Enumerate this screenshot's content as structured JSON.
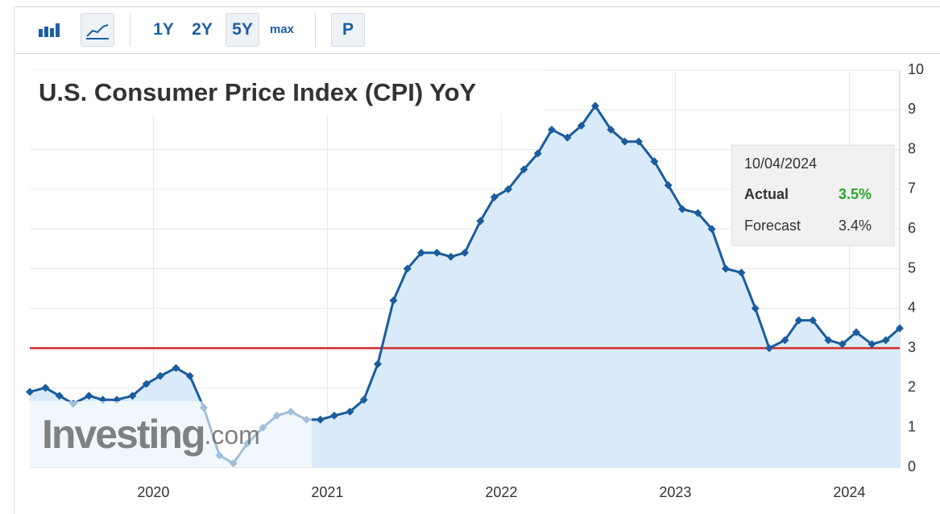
{
  "toolbar": {
    "buttons": [
      "1Y",
      "2Y",
      "5Y",
      "max",
      "P"
    ]
  },
  "chart_data": {
    "type": "area",
    "title": "U.S. Consumer Price Index (CPI) YoY",
    "x": [
      2019.29,
      2019.38,
      2019.46,
      2019.54,
      2019.63,
      2019.71,
      2019.79,
      2019.88,
      2019.96,
      2020.04,
      2020.13,
      2020.21,
      2020.29,
      2020.38,
      2020.46,
      2020.54,
      2020.63,
      2020.71,
      2020.79,
      2020.88,
      2020.96,
      2021.04,
      2021.13,
      2021.21,
      2021.29,
      2021.38,
      2021.46,
      2021.54,
      2021.63,
      2021.71,
      2021.79,
      2021.88,
      2021.96,
      2022.04,
      2022.13,
      2022.21,
      2022.29,
      2022.38,
      2022.46,
      2022.54,
      2022.63,
      2022.71,
      2022.79,
      2022.88,
      2022.96,
      2023.04,
      2023.13,
      2023.21,
      2023.29,
      2023.38,
      2023.46,
      2023.54,
      2023.63,
      2023.71,
      2023.79,
      2023.88,
      2023.96,
      2024.04,
      2024.13,
      2024.21,
      2024.29
    ],
    "values": [
      1.9,
      2.0,
      1.8,
      1.6,
      1.8,
      1.7,
      1.7,
      1.8,
      2.1,
      2.3,
      2.5,
      2.3,
      1.5,
      0.3,
      0.1,
      0.6,
      1.0,
      1.3,
      1.4,
      1.2,
      1.2,
      1.3,
      1.4,
      1.7,
      2.6,
      4.2,
      5.0,
      5.4,
      5.4,
      5.3,
      5.4,
      6.2,
      6.8,
      7.0,
      7.5,
      7.9,
      8.5,
      8.3,
      8.6,
      9.1,
      8.5,
      8.2,
      8.2,
      7.7,
      7.1,
      6.5,
      6.4,
      6.0,
      5.0,
      4.9,
      4.0,
      3.0,
      3.2,
      3.7,
      3.7,
      3.2,
      3.1,
      3.4,
      3.1,
      3.2,
      3.5
    ],
    "color": "#1a5c9e",
    "fill": "#d9ebfa",
    "xlim": [
      2019.29,
      2024.29
    ],
    "xticks": [
      2020,
      2021,
      2022,
      2023,
      2024
    ],
    "ylim": [
      0,
      10
    ],
    "yticks": [
      0,
      1,
      2,
      3,
      4,
      5,
      6,
      7,
      8,
      9,
      10
    ],
    "grid": true,
    "reference_line": {
      "value": 3,
      "color": "#d42a2a"
    }
  },
  "tooltip": {
    "date": "10/04/2024",
    "actual_label": "Actual",
    "actual": "3.5%",
    "forecast_label": "Forecast",
    "forecast": "3.4%"
  },
  "watermark": {
    "brand": "Investing",
    "suffix": ".com"
  }
}
